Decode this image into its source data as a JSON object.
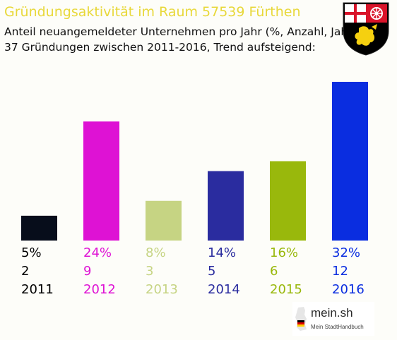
{
  "header": {
    "title": "Gründungsaktivität im Raum 57539 Fürthen",
    "subtitle_line1": "Anteil neuangemeldeter Unternehmen pro Jahr (%, Anzahl, Jahr)",
    "subtitle_line2": "37 Gründungen zwischen 2011-2016, Trend aufsteigend:"
  },
  "crest": {
    "icon": "rhineland-palatinate-coat-of-arms-icon",
    "colors": {
      "gold": "#f5d010",
      "black": "#000000",
      "red": "#d9142a",
      "white": "#ffffff"
    }
  },
  "chart_data": {
    "type": "bar",
    "categories": [
      "2011",
      "2012",
      "2013",
      "2014",
      "2015",
      "2016"
    ],
    "values": [
      5,
      24,
      8,
      14,
      16,
      32
    ],
    "counts": [
      2,
      9,
      3,
      5,
      6,
      12
    ],
    "percent_labels": [
      "5%",
      "24%",
      "8%",
      "14%",
      "16%",
      "32%"
    ],
    "count_labels": [
      "2",
      "9",
      "3",
      "5",
      "6",
      "12"
    ],
    "colors": [
      "#070d1b",
      "#de12d4",
      "#c6d483",
      "#2a2c9f",
      "#99b80c",
      "#0a2de0"
    ],
    "label_colors": [
      "#000000",
      "#de12d4",
      "#c6d483",
      "#2a2c9f",
      "#99b80c",
      "#0a2de0"
    ],
    "year_label_colors": [
      "#000000",
      "#de12d4",
      "#c6d483",
      "#2a2c9f",
      "#99b80c",
      "#0a2de0"
    ],
    "title": "Gründungsaktivität im Raum 57539 Fürthen",
    "xlabel": "",
    "ylabel": "",
    "ylim": [
      0,
      32
    ],
    "grid": false,
    "legend": "none"
  },
  "branding": {
    "name": "mein.sh",
    "tagline": "Mein StadtHandbuch",
    "icon": "germany-map-icon"
  }
}
